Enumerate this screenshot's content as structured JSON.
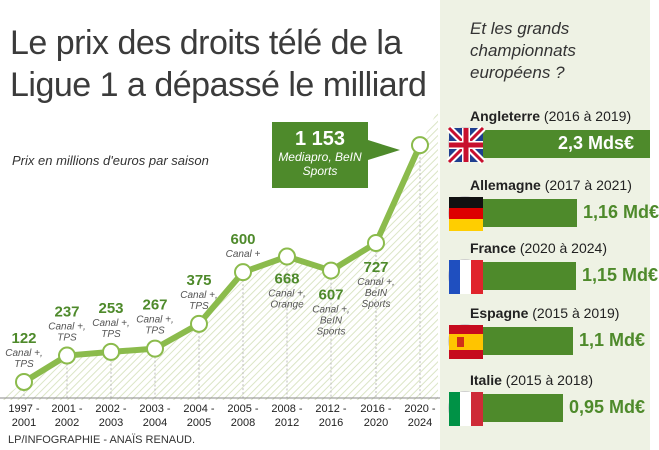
{
  "title": "Le prix des droits télé de la Ligue 1 a dépassé le milliard",
  "subtitle": "Prix en millions d'euros par saison",
  "credit": "LP/INFOGRAPHIE - ANAÏS RENAUD.",
  "colors": {
    "accent": "#4e8a2b",
    "line": "#8bbb4c",
    "panel_bg": "#eef2e4",
    "value_text": "#4e8a2b",
    "bg_stripe": "#dbe5c6"
  },
  "callout": {
    "value": "1 153",
    "broadcaster": "Mediapro, BeIN Sports"
  },
  "chart_data": {
    "type": "line",
    "categories": [
      "1997 - 2001",
      "2001 - 2002",
      "2002 - 2003",
      "2003 - 2004",
      "2004 - 2005",
      "2005 - 2008",
      "2008 - 2012",
      "2012 - 2016",
      "2016 - 2020",
      "2020 - 2024"
    ],
    "values": [
      122,
      237,
      253,
      267,
      375,
      600,
      668,
      607,
      727,
      1153
    ],
    "value_labels": [
      "122",
      "237",
      "253",
      "267",
      "375",
      "600",
      "668",
      "607",
      "727",
      "1 153"
    ],
    "broadcasters": [
      "Canal +, TPS",
      "Canal +, TPS",
      "Canal +, TPS",
      "Canal +, TPS",
      "Canal +, TPS",
      "Canal +",
      "Canal +, Orange",
      "Canal +, BeIN Sports",
      "Canal +, BeIN Sports",
      "Mediapro, BeIN Sports"
    ],
    "title": "Le prix des droits télé de la Ligue 1 a dépassé le milliard",
    "ylabel": "Prix en millions d'euros par saison",
    "ylim": [
      0,
      1200
    ]
  },
  "panel": {
    "title": "Et les grands championnats européens ?",
    "leagues": [
      {
        "country": "Angleterre",
        "period": "(2016 à 2019)",
        "value_label": "2,3 Mds€",
        "value": 2.3,
        "flag": "uk-flag-icon"
      },
      {
        "country": "Allemagne",
        "period": "(2017 à 2021)",
        "value_label": "1,16 Md€",
        "value": 1.16,
        "flag": "germany-flag-icon"
      },
      {
        "country": "France",
        "period": "(2020 à 2024)",
        "value_label": "1,15 Md€",
        "value": 1.15,
        "flag": "france-flag-icon"
      },
      {
        "country": "Espagne",
        "period": "(2015 à 2019)",
        "value_label": "1,1 Md€",
        "value": 1.1,
        "flag": "spain-flag-icon"
      },
      {
        "country": "Italie",
        "period": "(2015 à 2018)",
        "value_label": "0,95 Md€",
        "value": 0.95,
        "flag": "italy-flag-icon"
      }
    ]
  }
}
